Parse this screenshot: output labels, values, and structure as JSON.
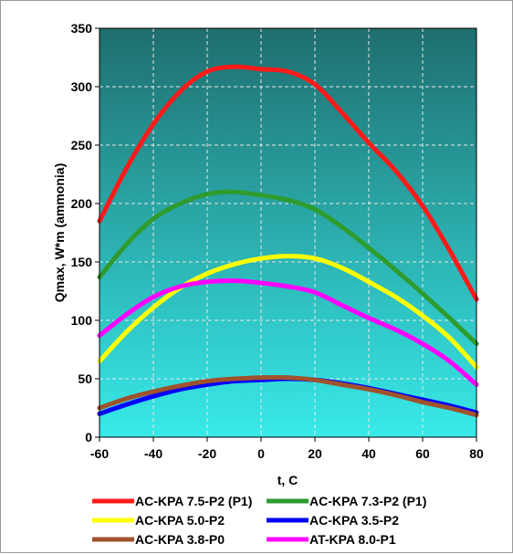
{
  "chart_data": {
    "type": "line",
    "xlabel": "t, C",
    "ylabel": "Qmax, W*m (ammonia)",
    "xlim": [
      -60,
      80
    ],
    "ylim": [
      0,
      350
    ],
    "xticks": [
      -60,
      -40,
      -20,
      0,
      20,
      40,
      60,
      80
    ],
    "yticks": [
      0,
      50,
      100,
      150,
      200,
      250,
      300,
      350
    ],
    "grid": true,
    "legend_position": "bottom",
    "background_gradient": [
      "#1f6e6e",
      "#38eaea"
    ],
    "series": [
      {
        "name": "AC-KPA 7.5-P2 (P1)",
        "color": "#ff1a1a",
        "x": [
          -60,
          -50,
          -40,
          -30,
          -20,
          -10,
          0,
          10,
          20,
          30,
          40,
          50,
          60,
          70,
          80
        ],
        "y": [
          185,
          230,
          268,
          296,
          313,
          317,
          315,
          313,
          302,
          278,
          252,
          228,
          198,
          160,
          118
        ]
      },
      {
        "name": "AC-KPA 7.3-P2 (P1)",
        "color": "#2e9b2e",
        "x": [
          -60,
          -50,
          -40,
          -30,
          -20,
          -10,
          0,
          10,
          20,
          30,
          40,
          50,
          60,
          70,
          80
        ],
        "y": [
          137,
          165,
          187,
          200,
          208,
          210,
          207,
          203,
          195,
          180,
          162,
          143,
          123,
          102,
          80
        ]
      },
      {
        "name": "AC-KPA 5.0-P2",
        "color": "#ffff00",
        "x": [
          -60,
          -50,
          -40,
          -30,
          -20,
          -10,
          0,
          10,
          20,
          30,
          40,
          50,
          60,
          70,
          80
        ],
        "y": [
          65,
          90,
          111,
          128,
          140,
          148,
          153,
          155,
          153,
          145,
          133,
          120,
          104,
          85,
          60
        ]
      },
      {
        "name": "AC-KPA 3.5-P2",
        "color": "#0000ff",
        "x": [
          -60,
          -50,
          -40,
          -30,
          -20,
          -10,
          0,
          10,
          20,
          30,
          40,
          50,
          60,
          70,
          80
        ],
        "y": [
          20,
          28,
          35,
          41,
          45,
          48,
          49,
          50,
          49,
          46,
          42,
          37,
          32,
          27,
          21
        ]
      },
      {
        "name": "AC-KPA 3.8-P0",
        "color": "#a0522d",
        "x": [
          -60,
          -50,
          -40,
          -30,
          -20,
          -10,
          0,
          10,
          20,
          30,
          40,
          50,
          60,
          70,
          80
        ],
        "y": [
          25,
          33,
          39,
          44,
          48,
          50,
          51,
          51,
          49,
          45,
          41,
          36,
          30,
          25,
          19
        ]
      },
      {
        "name": "AT-KPA 8.0-P1",
        "color": "#ff00ff",
        "x": [
          -60,
          -50,
          -40,
          -30,
          -20,
          -10,
          0,
          10,
          20,
          30,
          40,
          50,
          60,
          70,
          80
        ],
        "y": [
          87,
          105,
          120,
          129,
          133,
          134,
          132,
          129,
          124,
          113,
          102,
          92,
          80,
          65,
          45
        ]
      }
    ]
  }
}
